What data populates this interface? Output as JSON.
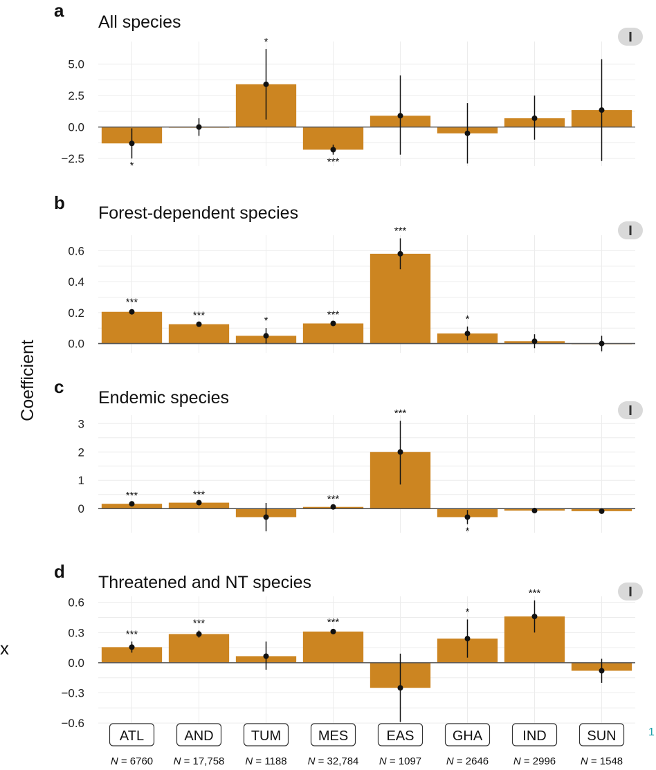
{
  "figure": {
    "ylabel": "Coefficient",
    "bar_color": "#cc8521",
    "categories": [
      "ATL",
      "AND",
      "TUM",
      "MES",
      "EAS",
      "GHA",
      "IND",
      "SUN"
    ],
    "n_prefix": "N = ",
    "n_values": [
      "6760",
      "17,758",
      "1188",
      "32,784",
      "1097",
      "2646",
      "2996",
      "1548"
    ],
    "edge_letter": "x",
    "edge_number": "1",
    "toggle_icon": "pause-toggle-icon"
  },
  "chart_data": [
    {
      "type": "bar",
      "letter": "a",
      "title": "All species",
      "categories": [
        "ATL",
        "AND",
        "TUM",
        "MES",
        "EAS",
        "GHA",
        "IND",
        "SUN"
      ],
      "values": [
        -1.3,
        0.0,
        3.4,
        -1.8,
        0.9,
        -0.5,
        0.7,
        1.35
      ],
      "ci_low": [
        -2.5,
        -0.7,
        0.6,
        -2.2,
        -2.2,
        -2.9,
        -1.0,
        -2.7
      ],
      "ci_high": [
        -0.1,
        0.7,
        6.2,
        -1.4,
        4.1,
        1.9,
        2.5,
        5.4
      ],
      "significance": [
        "*",
        "",
        "*",
        "***",
        "",
        "",
        "",
        ""
      ],
      "yticks": [
        "5.0",
        "2.5",
        "0.0",
        "−2.5"
      ],
      "ytick_values": [
        5.0,
        2.5,
        0.0,
        -2.5
      ],
      "ylim": [
        -3.1,
        6.8
      ],
      "grid": true
    },
    {
      "type": "bar",
      "letter": "b",
      "title": "Forest-dependent species",
      "categories": [
        "ATL",
        "AND",
        "TUM",
        "MES",
        "EAS",
        "GHA",
        "IND",
        "SUN"
      ],
      "values": [
        0.205,
        0.125,
        0.05,
        0.13,
        0.58,
        0.065,
        0.015,
        0.0
      ],
      "ci_low": [
        0.19,
        0.115,
        0.0,
        0.12,
        0.48,
        0.02,
        -0.03,
        -0.05
      ],
      "ci_high": [
        0.22,
        0.135,
        0.1,
        0.14,
        0.68,
        0.11,
        0.06,
        0.05
      ],
      "significance": [
        "***",
        "***",
        "*",
        "***",
        "***",
        "*",
        "",
        ""
      ],
      "yticks": [
        "0.6",
        "0.4",
        "0.2",
        "0.0"
      ],
      "ytick_values": [
        0.6,
        0.4,
        0.2,
        0.0
      ],
      "ylim": [
        -0.06,
        0.7
      ],
      "grid": true
    },
    {
      "type": "bar",
      "letter": "c",
      "title": "Endemic species",
      "categories": [
        "ATL",
        "AND",
        "TUM",
        "MES",
        "EAS",
        "GHA",
        "IND",
        "SUN"
      ],
      "values": [
        0.17,
        0.21,
        -0.3,
        0.06,
        2.0,
        -0.3,
        -0.07,
        -0.09
      ],
      "ci_low": [
        0.14,
        0.18,
        -0.8,
        0.04,
        0.85,
        -0.55,
        -0.1,
        -0.12
      ],
      "ci_high": [
        0.2,
        0.24,
        0.2,
        0.08,
        3.1,
        -0.05,
        -0.04,
        -0.06
      ],
      "significance": [
        "***",
        "***",
        "",
        "***",
        "***",
        "*",
        "",
        ""
      ],
      "yticks": [
        "3",
        "2",
        "1",
        "0"
      ],
      "ytick_values": [
        3,
        2,
        1,
        0
      ],
      "ylim": [
        -0.85,
        3.3
      ],
      "grid": true
    },
    {
      "type": "bar",
      "letter": "d",
      "title": "Threatened and NT species",
      "categories": [
        "ATL",
        "AND",
        "TUM",
        "MES",
        "EAS",
        "GHA",
        "IND",
        "SUN"
      ],
      "values": [
        0.155,
        0.285,
        0.065,
        0.31,
        -0.25,
        0.24,
        0.46,
        -0.08
      ],
      "ci_low": [
        0.1,
        0.25,
        -0.07,
        0.29,
        -0.59,
        0.05,
        0.3,
        -0.2
      ],
      "ci_high": [
        0.21,
        0.32,
        0.21,
        0.33,
        0.09,
        0.43,
        0.62,
        0.04
      ],
      "significance": [
        "***",
        "***",
        "",
        "***",
        "",
        "*",
        "***",
        ""
      ],
      "yticks": [
        "0.6",
        "0.3",
        "0.0",
        "−0.3",
        "−0.6"
      ],
      "ytick_values": [
        0.6,
        0.3,
        0.0,
        -0.3,
        -0.6
      ],
      "ylim": [
        -0.62,
        0.66
      ],
      "grid": true
    }
  ]
}
